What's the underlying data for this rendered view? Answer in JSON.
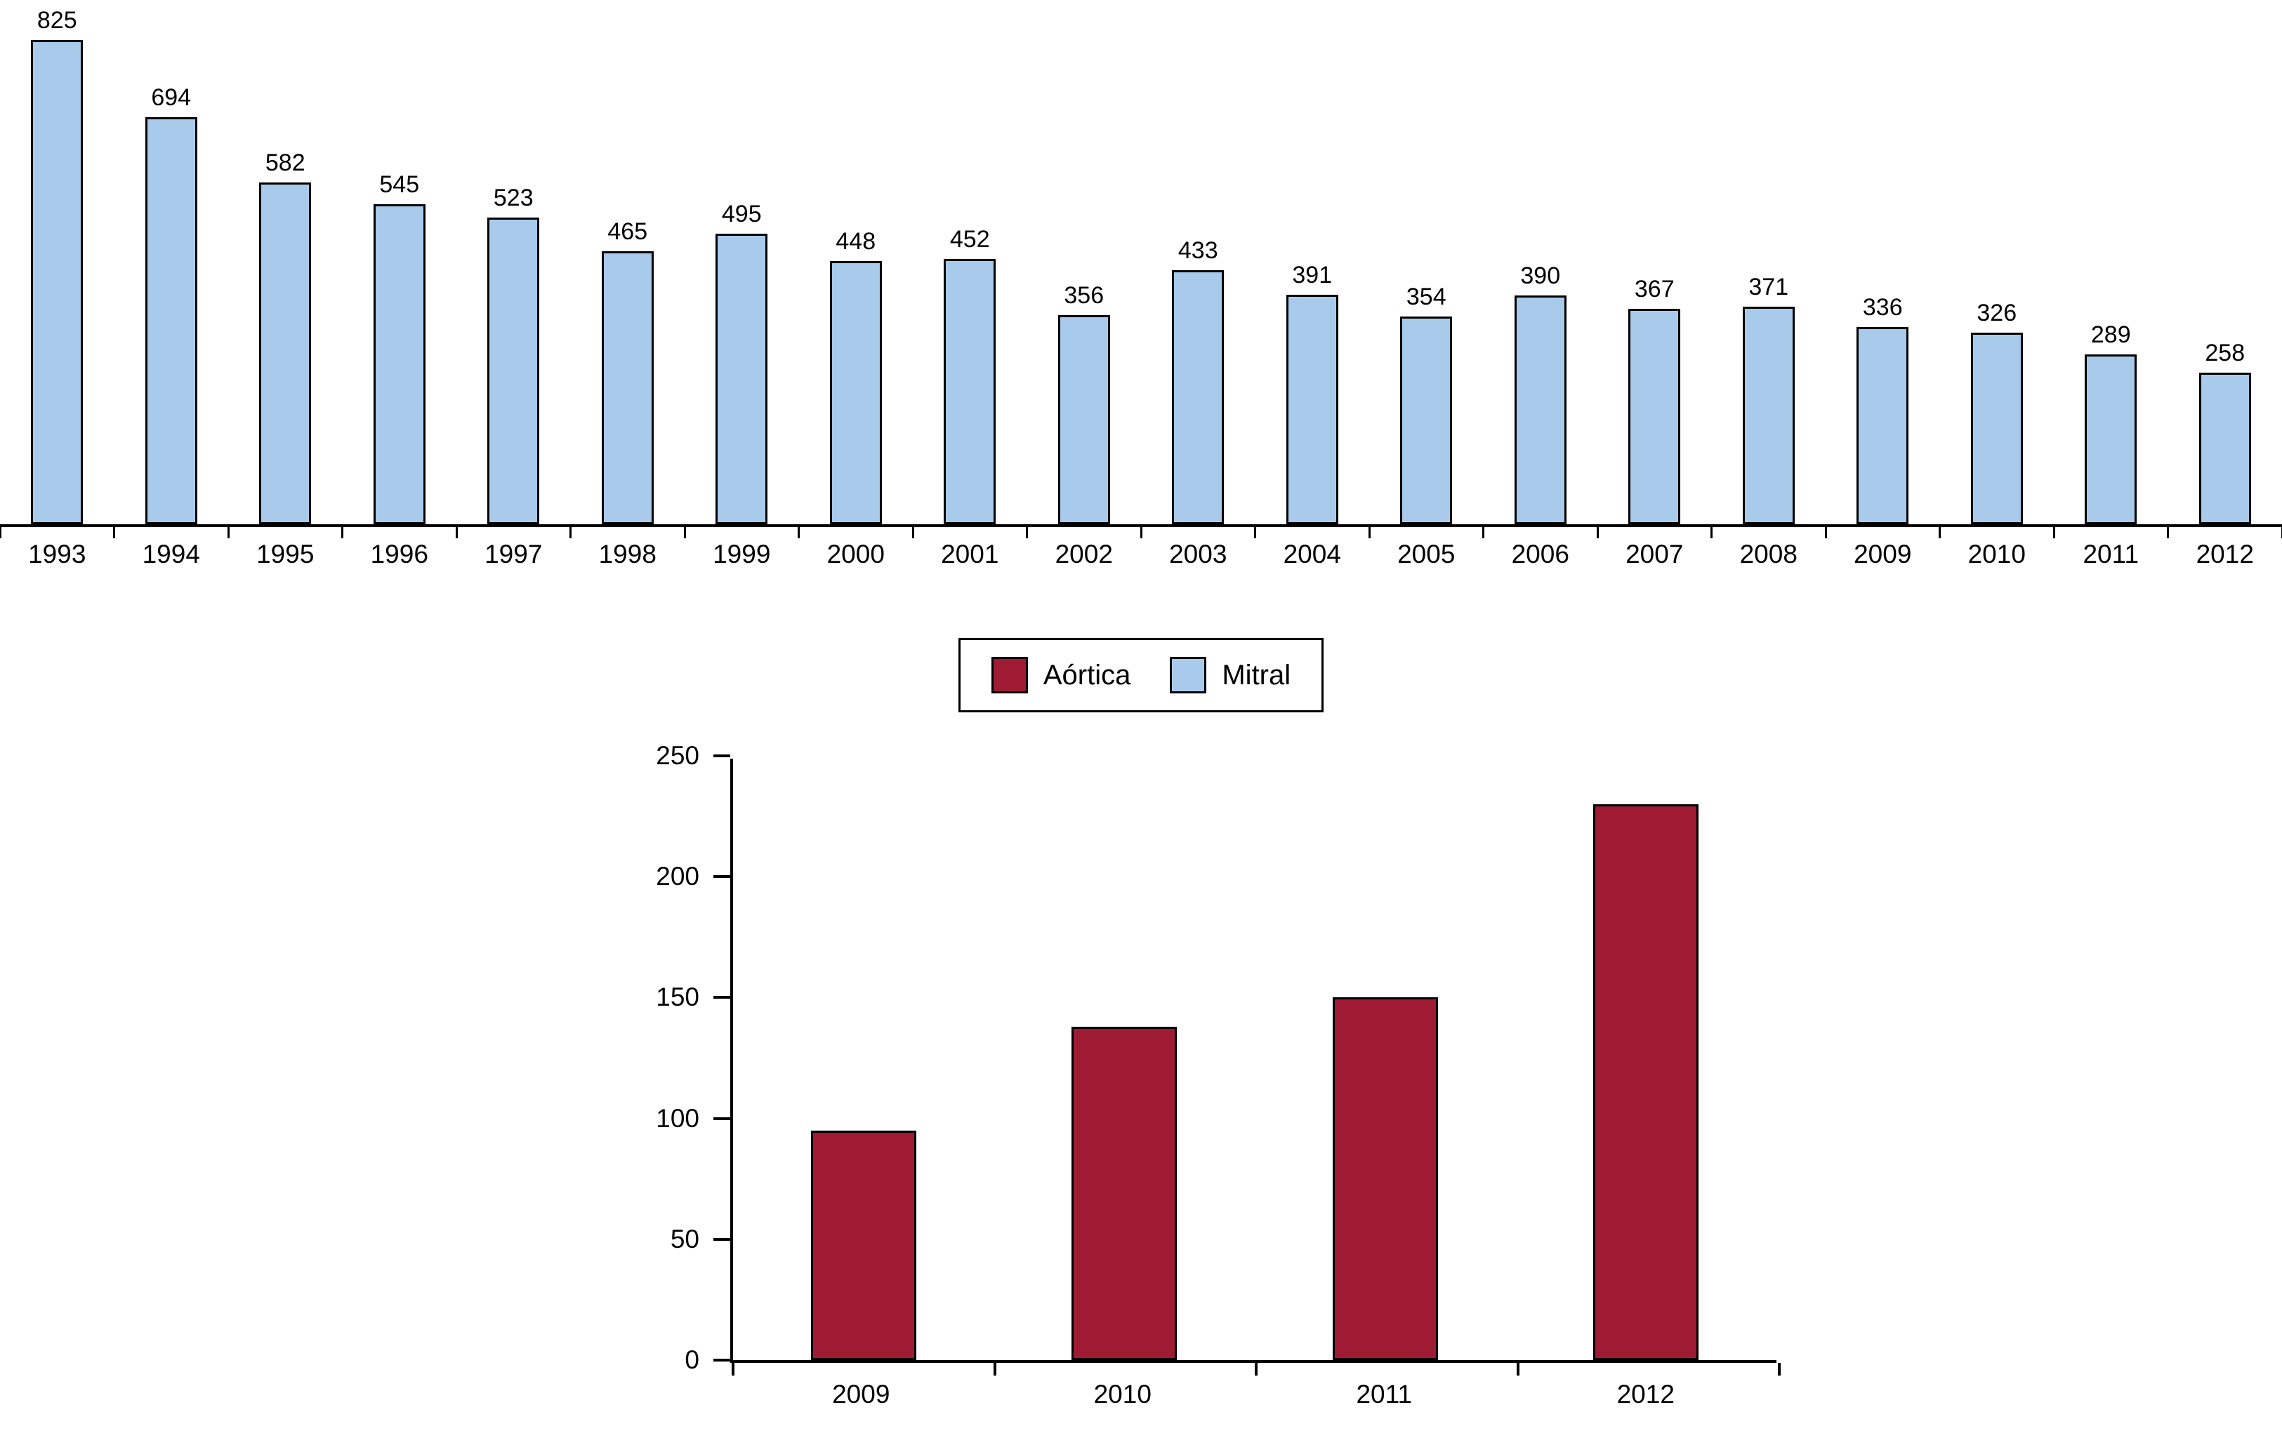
{
  "legend": {
    "items": [
      {
        "label": "Aórtica",
        "color": "#9F1B33"
      },
      {
        "label": "Mitral",
        "color": "#A8CBEC"
      }
    ]
  },
  "chart_data": [
    {
      "type": "bar",
      "series": [
        {
          "name": "Mitral",
          "values": [
            825,
            694,
            582,
            545,
            523,
            465,
            495,
            448,
            452,
            356,
            433,
            391,
            354,
            390,
            367,
            371,
            336,
            326,
            289,
            258
          ]
        }
      ],
      "categories": [
        "1993",
        "1994",
        "1995",
        "1996",
        "1997",
        "1998",
        "1999",
        "2000",
        "2001",
        "2002",
        "2003",
        "2004",
        "2005",
        "2006",
        "2007",
        "2008",
        "2009",
        "2010",
        "2011",
        "2012"
      ],
      "title": "",
      "xlabel": "",
      "ylabel": "",
      "ylim": [
        0,
        825
      ],
      "data_labels": true,
      "y_axis_visible": false,
      "grid": false,
      "bar_color": "#A8CBEC",
      "bar_border_color": "#000000",
      "legend_position": "below"
    },
    {
      "type": "bar",
      "series": [
        {
          "name": "Aórtica",
          "values": [
            95,
            138,
            150,
            230
          ]
        }
      ],
      "categories": [
        "2009",
        "2010",
        "2011",
        "2012"
      ],
      "title": "",
      "xlabel": "",
      "ylabel": "",
      "ylim": [
        0,
        250
      ],
      "yticks": [
        0,
        50,
        100,
        150,
        200,
        250
      ],
      "data_labels": false,
      "grid": false,
      "bar_color": "#9F1B33",
      "bar_border_color": "#000000"
    }
  ]
}
